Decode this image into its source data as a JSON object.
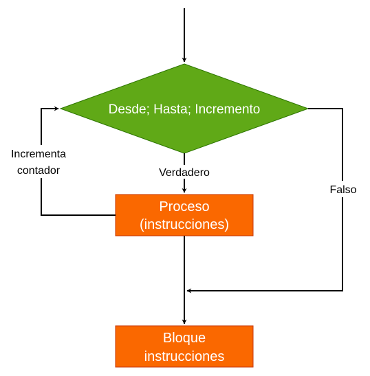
{
  "diagram": {
    "decision": {
      "text": "Desde; Hasta; Incremento",
      "fill": "#60a917",
      "stroke": "#2d7600"
    },
    "process": {
      "line1": "Proceso",
      "line2": "(instrucciones)",
      "fill": "#fa6800",
      "stroke": "#c73500"
    },
    "block": {
      "line1": "Bloque",
      "line2": "instrucciones",
      "fill": "#fa6800",
      "stroke": "#c73500"
    },
    "labels": {
      "true_branch": "Verdadero",
      "false_branch": "Falso",
      "loop_line1": "Incrementa",
      "loop_line2": "contador"
    }
  }
}
